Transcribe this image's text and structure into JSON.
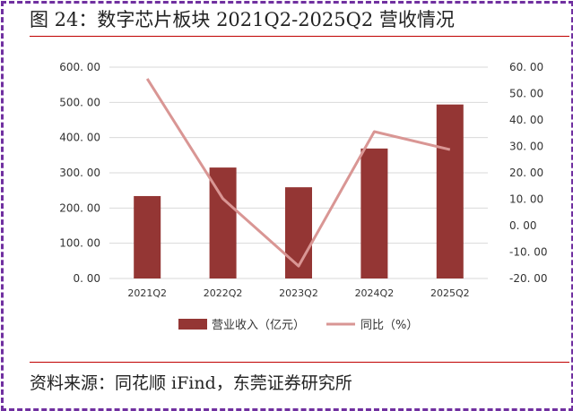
{
  "title": "图 24：数字芯片板块 2021Q2-2025Q2 营收情况",
  "source": "资料来源：同花顺 iFind，东莞证券研究所",
  "colors": {
    "border": "#7030a0",
    "rule": "#c00000",
    "bar": "#943634",
    "line": "#d99694",
    "grid": "#d9d9d9"
  },
  "legend": {
    "bar_label": "营业收入（亿元）",
    "line_label": "同比（%）"
  },
  "chart_data": {
    "type": "bar+line",
    "title": "图 24：数字芯片板块 2021Q2-2025Q2 营收情况",
    "categories": [
      "2021Q2",
      "2022Q2",
      "2023Q2",
      "2024Q2",
      "2025Q2"
    ],
    "series": [
      {
        "name": "营业收入（亿元）",
        "type": "bar",
        "axis": "left",
        "values": [
          234,
          315,
          259,
          369,
          494
        ]
      },
      {
        "name": "同比（%）",
        "type": "line",
        "axis": "right",
        "values": [
          55.6,
          10.2,
          -15.3,
          35.6,
          28.8
        ]
      }
    ],
    "left_axis": {
      "ylim": [
        0,
        600
      ],
      "ticks": [
        "0.00",
        "100.00",
        "200.00",
        "300.00",
        "400.00",
        "500.00",
        "600.00"
      ]
    },
    "right_axis": {
      "ylim": [
        -20,
        60
      ],
      "ticks": [
        "-20.00",
        "-10.00",
        "0.00",
        "10.00",
        "20.00",
        "30.00",
        "40.00",
        "50.00",
        "60.00"
      ]
    },
    "xlabel": "",
    "ylabel": "",
    "grid": true,
    "legend_position": "bottom"
  }
}
